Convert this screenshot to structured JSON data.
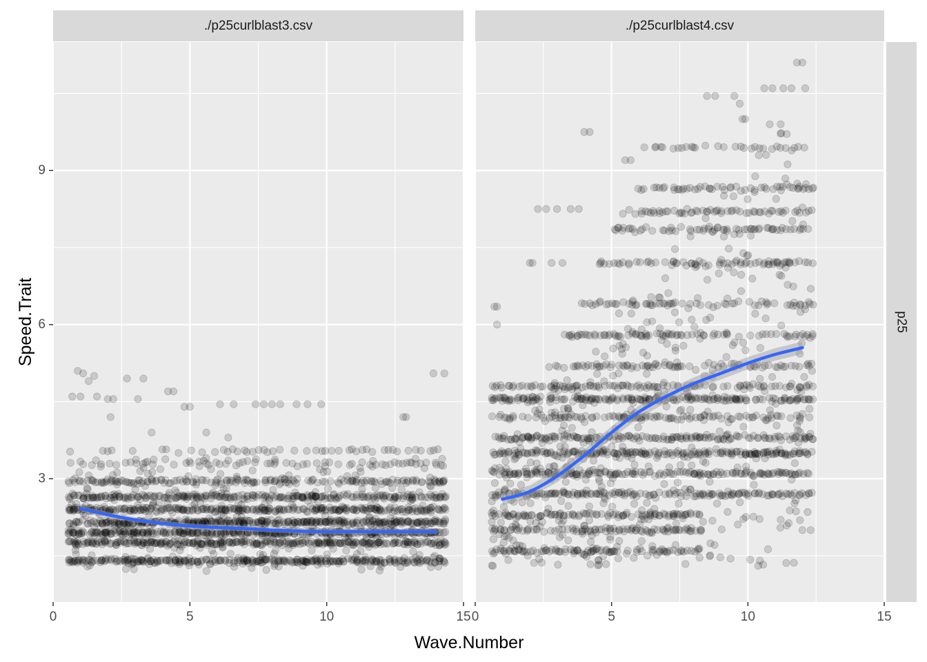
{
  "colors": {
    "panel_background": "#ebebeb",
    "grid_line": "#ffffff",
    "strip_background": "#d9d9d9",
    "point": "#000000",
    "smooth_line": "#3366ff",
    "confidence_band": "#999999"
  },
  "chart_data": {
    "type": "scatter",
    "xlabel": "Wave.Number",
    "ylabel": "Speed.Trait",
    "row_strip": "p25",
    "xlim": [
      0,
      15
    ],
    "ylim": [
      0.6,
      11.5
    ],
    "x_ticks": [
      0,
      5,
      10,
      15
    ],
    "y_ticks": [
      3,
      6,
      9
    ],
    "grid": true,
    "point_alpha": 0.15,
    "panels": [
      {
        "strip": "./p25curlblast3.csv",
        "x_range": [
          0.6,
          14.3
        ],
        "smooth": {
          "x": [
            1,
            2,
            3,
            4,
            5,
            6,
            7,
            8,
            9,
            10,
            11,
            12,
            13,
            14
          ],
          "y": [
            2.42,
            2.3,
            2.2,
            2.13,
            2.08,
            2.05,
            2.03,
            2.0,
            1.98,
            1.97,
            1.97,
            1.97,
            1.97,
            1.97
          ]
        },
        "bands": [
          {
            "y": 1.4,
            "weight": 5
          },
          {
            "y": 1.75,
            "weight": 5
          },
          {
            "y": 1.95,
            "weight": 6
          },
          {
            "y": 2.15,
            "weight": 6
          },
          {
            "y": 2.4,
            "weight": 5
          },
          {
            "y": 2.65,
            "weight": 4
          },
          {
            "y": 2.95,
            "weight": 3
          },
          {
            "y": 3.3,
            "weight": 1
          },
          {
            "y": 3.55,
            "weight": 1
          }
        ],
        "noise_range": [
          1.2,
          3.4
        ],
        "outliers": [
          {
            "x": 0.9,
            "y": 5.1
          },
          {
            "x": 1.1,
            "y": 5.05
          },
          {
            "x": 1.3,
            "y": 4.9
          },
          {
            "x": 1.5,
            "y": 5.0
          },
          {
            "x": 0.7,
            "y": 4.6
          },
          {
            "x": 1.0,
            "y": 4.6
          },
          {
            "x": 1.6,
            "y": 4.6
          },
          {
            "x": 2.0,
            "y": 4.55
          },
          {
            "x": 2.2,
            "y": 4.55
          },
          {
            "x": 2.7,
            "y": 4.95
          },
          {
            "x": 3.3,
            "y": 4.95
          },
          {
            "x": 3.1,
            "y": 4.55
          },
          {
            "x": 4.2,
            "y": 4.7
          },
          {
            "x": 4.4,
            "y": 4.7
          },
          {
            "x": 4.8,
            "y": 4.4
          },
          {
            "x": 5.0,
            "y": 4.4
          },
          {
            "x": 6.1,
            "y": 4.45
          },
          {
            "x": 6.6,
            "y": 4.45
          },
          {
            "x": 7.4,
            "y": 4.45
          },
          {
            "x": 7.7,
            "y": 4.45
          },
          {
            "x": 8.0,
            "y": 4.45
          },
          {
            "x": 8.3,
            "y": 4.45
          },
          {
            "x": 8.9,
            "y": 4.45
          },
          {
            "x": 9.3,
            "y": 4.45
          },
          {
            "x": 9.8,
            "y": 4.45
          },
          {
            "x": 12.8,
            "y": 4.2
          },
          {
            "x": 12.9,
            "y": 4.2
          },
          {
            "x": 13.9,
            "y": 5.05
          },
          {
            "x": 14.3,
            "y": 5.05
          },
          {
            "x": 2.1,
            "y": 4.2
          },
          {
            "x": 3.6,
            "y": 3.9
          },
          {
            "x": 5.6,
            "y": 3.9
          },
          {
            "x": 6.4,
            "y": 3.8
          }
        ]
      },
      {
        "strip": "./p25curlblast4.csv",
        "x_range": [
          0.6,
          12.4
        ],
        "smooth": {
          "x": [
            1,
            2,
            3,
            4,
            5,
            6,
            7,
            8,
            9,
            10,
            11,
            12
          ],
          "y": [
            2.6,
            2.75,
            3.05,
            3.45,
            3.9,
            4.3,
            4.6,
            4.85,
            5.05,
            5.25,
            5.42,
            5.55
          ]
        },
        "bands": [
          {
            "y": 1.6,
            "weight": 3
          },
          {
            "y": 2.0,
            "weight": 3
          },
          {
            "y": 2.3,
            "weight": 3
          },
          {
            "y": 2.7,
            "weight": 3
          },
          {
            "y": 3.1,
            "weight": 3
          },
          {
            "y": 3.5,
            "weight": 4
          },
          {
            "y": 3.8,
            "weight": 3
          },
          {
            "y": 4.2,
            "weight": 2
          },
          {
            "y": 4.55,
            "weight": 4
          },
          {
            "y": 4.8,
            "weight": 2
          },
          {
            "y": 5.2,
            "weight": 2
          },
          {
            "y": 5.8,
            "weight": 2
          },
          {
            "y": 6.4,
            "weight": 2
          },
          {
            "y": 7.2,
            "weight": 2
          },
          {
            "y": 7.85,
            "weight": 2
          },
          {
            "y": 8.2,
            "weight": 2
          },
          {
            "y": 8.65,
            "weight": 2
          },
          {
            "y": 9.45,
            "weight": 1
          }
        ],
        "noise_range": [
          1.3,
          10.0
        ],
        "outliers": [
          {
            "x": 0.7,
            "y": 6.35
          },
          {
            "x": 0.8,
            "y": 6.35
          },
          {
            "x": 0.8,
            "y": 6.0
          },
          {
            "x": 2.0,
            "y": 7.2
          },
          {
            "x": 2.1,
            "y": 7.2
          },
          {
            "x": 2.3,
            "y": 8.25
          },
          {
            "x": 2.6,
            "y": 8.25
          },
          {
            "x": 3.0,
            "y": 8.25
          },
          {
            "x": 3.5,
            "y": 8.25
          },
          {
            "x": 3.8,
            "y": 8.25
          },
          {
            "x": 4.0,
            "y": 9.75
          },
          {
            "x": 4.2,
            "y": 9.75
          },
          {
            "x": 5.5,
            "y": 9.2
          },
          {
            "x": 5.7,
            "y": 9.2
          },
          {
            "x": 6.2,
            "y": 9.45
          },
          {
            "x": 6.6,
            "y": 9.45
          },
          {
            "x": 8.0,
            "y": 9.45
          },
          {
            "x": 8.5,
            "y": 10.45
          },
          {
            "x": 8.8,
            "y": 10.45
          },
          {
            "x": 9.5,
            "y": 10.45
          },
          {
            "x": 9.7,
            "y": 10.3
          },
          {
            "x": 9.8,
            "y": 10.0
          },
          {
            "x": 9.9,
            "y": 10.0
          },
          {
            "x": 10.6,
            "y": 10.6
          },
          {
            "x": 10.9,
            "y": 10.6
          },
          {
            "x": 11.3,
            "y": 10.6
          },
          {
            "x": 11.6,
            "y": 10.6
          },
          {
            "x": 11.8,
            "y": 11.1
          },
          {
            "x": 12.0,
            "y": 11.1
          },
          {
            "x": 12.1,
            "y": 10.6
          },
          {
            "x": 10.8,
            "y": 9.9
          },
          {
            "x": 11.2,
            "y": 9.9
          },
          {
            "x": 4.6,
            "y": 7.2
          },
          {
            "x": 2.8,
            "y": 7.2
          },
          {
            "x": 3.2,
            "y": 7.2
          },
          {
            "x": 12.3,
            "y": 2.0
          },
          {
            "x": 12.0,
            "y": 2.0
          },
          {
            "x": 11.2,
            "y": 2.2
          }
        ]
      }
    ]
  }
}
